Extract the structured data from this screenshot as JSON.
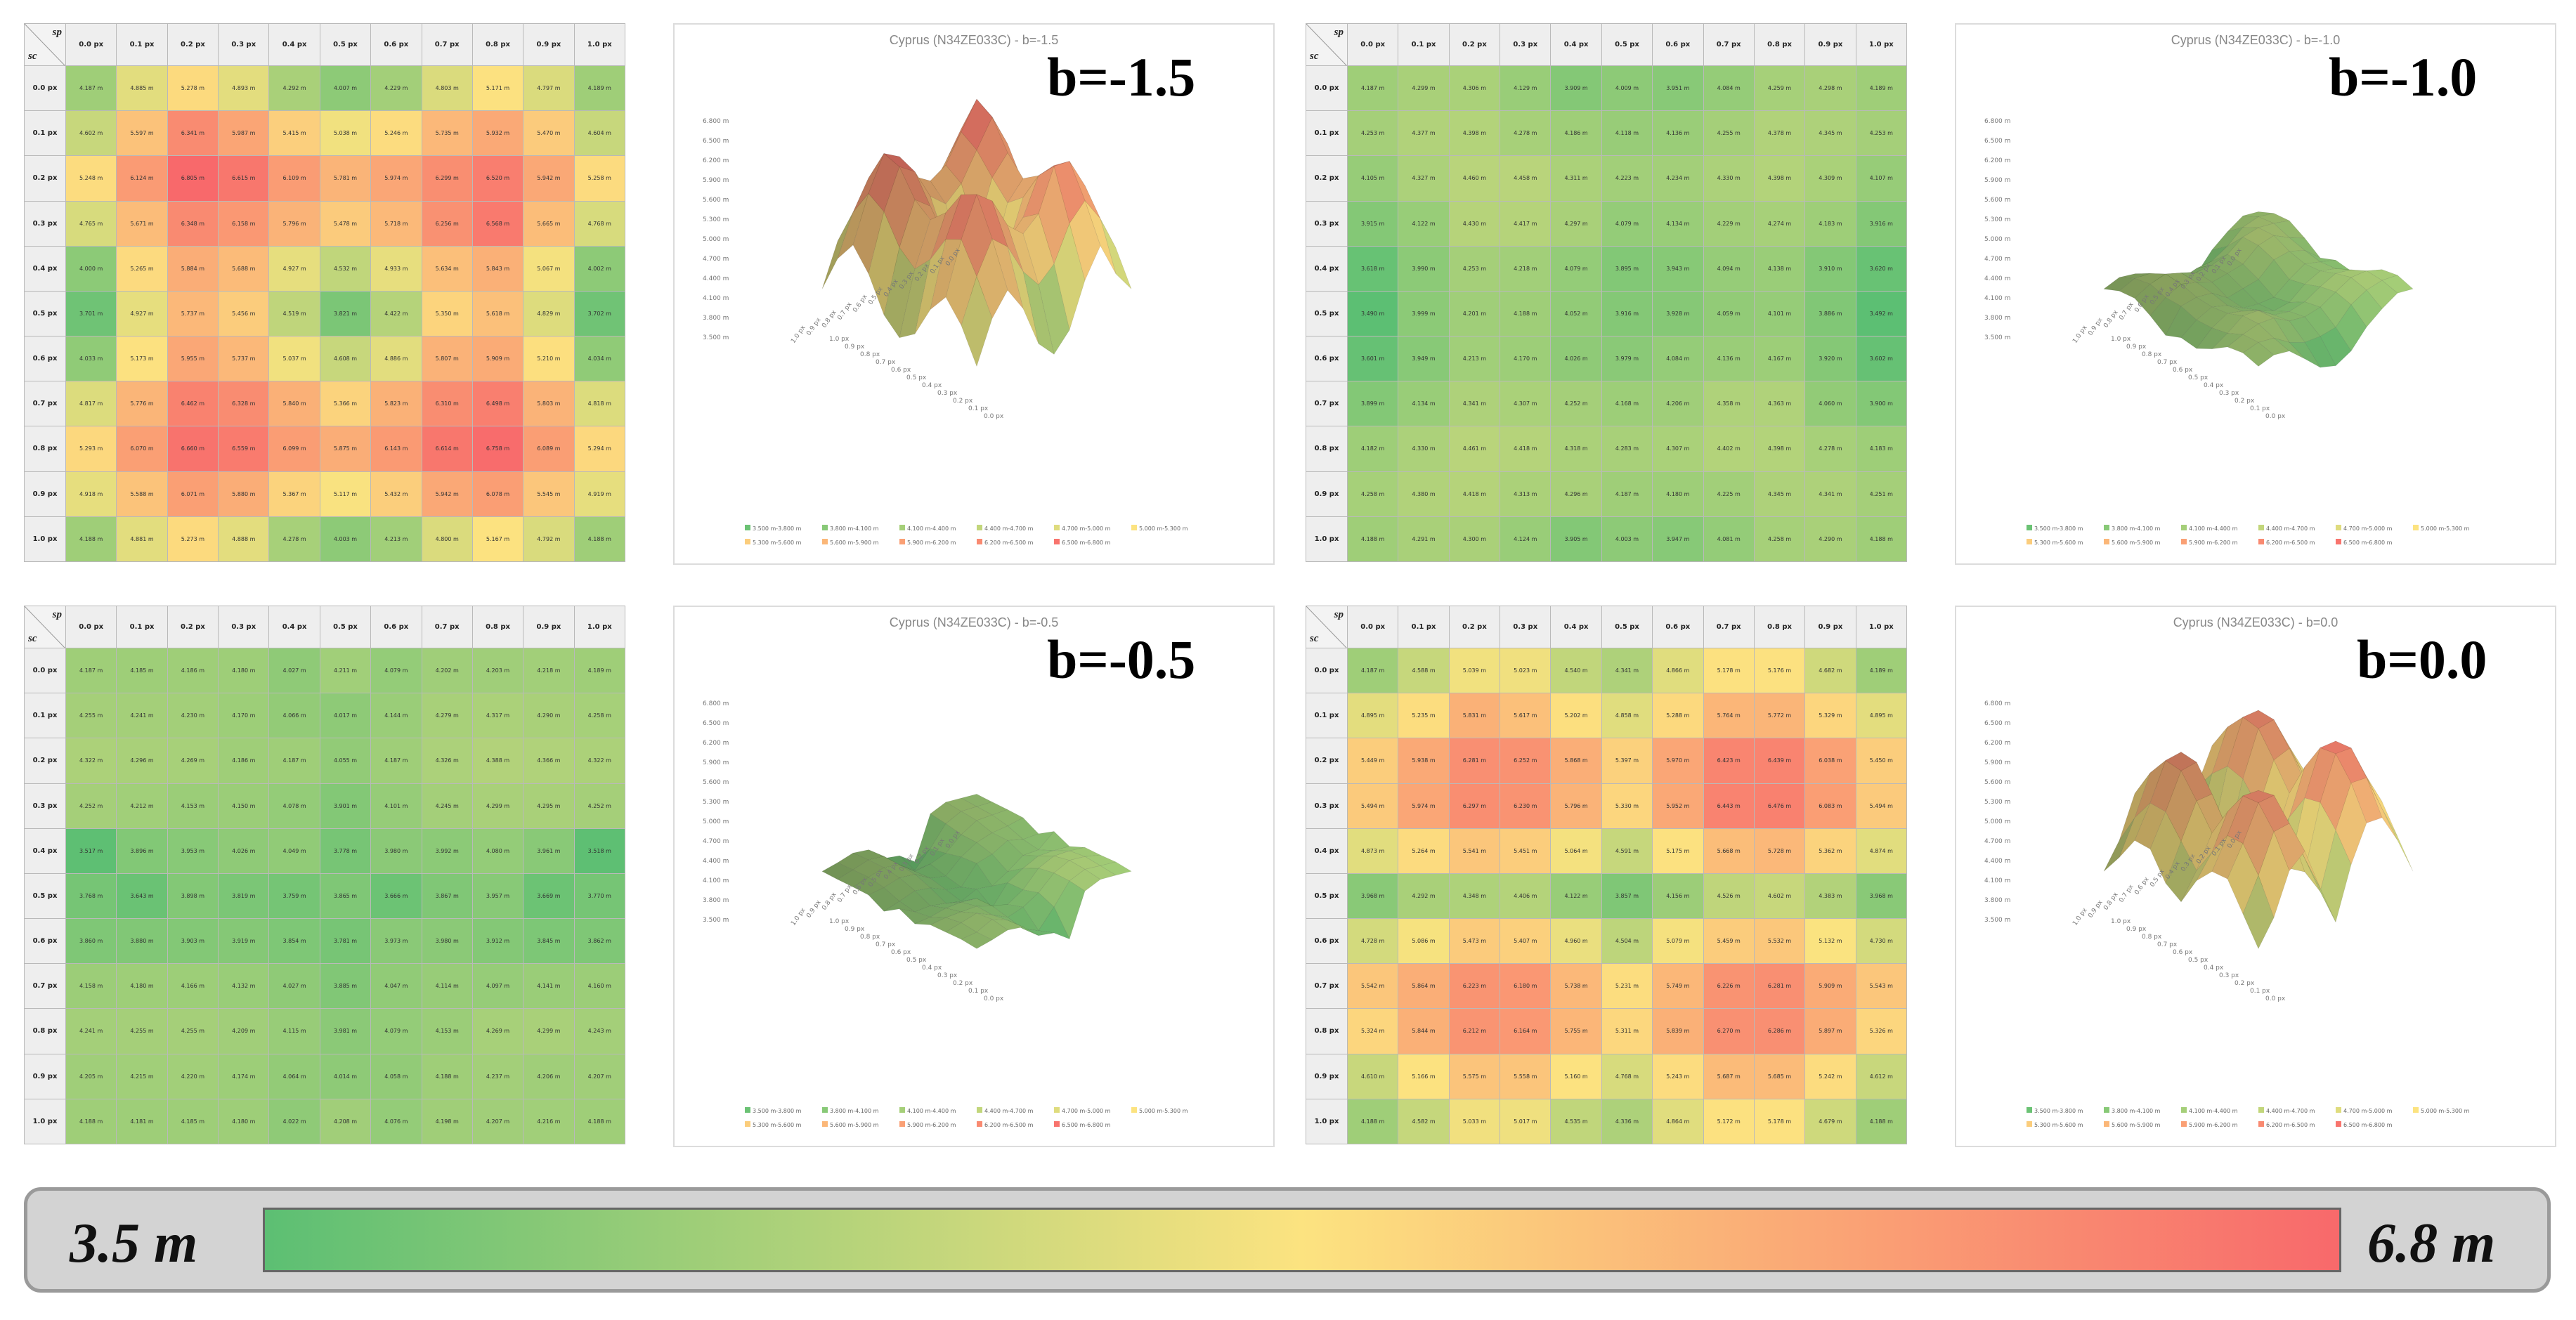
{
  "colorscale": {
    "min": 3.5,
    "max": 6.8,
    "colors": [
      "#5cbf73",
      "#fce380",
      "#f8696b"
    ]
  },
  "corner": {
    "top": "sp",
    "bottom": "sc"
  },
  "col_headers": [
    "0.0 px",
    "0.1 px",
    "0.2 px",
    "0.3 px",
    "0.4 px",
    "0.5 px",
    "0.6 px",
    "0.7 px",
    "0.8 px",
    "0.9 px",
    "1.0 px"
  ],
  "row_headers": [
    "0.0 px",
    "0.1 px",
    "0.2 px",
    "0.3 px",
    "0.4 px",
    "0.5 px",
    "0.6 px",
    "0.7 px",
    "0.8 px",
    "0.9 px",
    "1.0 px"
  ],
  "colorbar": {
    "min_label": "3.5 m",
    "max_label": "6.8 m"
  },
  "legend_items": [
    "3.500 m-3.800 m",
    "3.800 m-4.100 m",
    "4.100 m-4.400 m",
    "4.400 m-4.700 m",
    "4.700 m-5.000 m",
    "5.000 m-5.300 m",
    "5.300 m-5.600 m",
    "5.600 m-5.900 m",
    "5.900 m-6.200 m",
    "6.200 m-6.500 m",
    "6.500 m-6.800 m"
  ],
  "z_axis_ticks": [
    "6.800 m",
    "6.500 m",
    "6.200 m",
    "5.900 m",
    "5.600 m",
    "5.300 m",
    "5.000 m",
    "4.700 m",
    "4.400 m",
    "4.100 m",
    "3.800 m",
    "3.500 m"
  ],
  "chart_data": [
    {
      "type": "heatmap",
      "title": "b=-1.5",
      "plot_title": "Cyprus (N34ZE033C) - b=-1.5",
      "x_label": "sp",
      "y_label": "sc",
      "values": [
        [
          4.187,
          4.885,
          5.278,
          4.893,
          4.292,
          4.007,
          4.229,
          4.803,
          5.171,
          4.797,
          4.189
        ],
        [
          4.602,
          5.597,
          6.341,
          5.987,
          5.415,
          5.038,
          5.246,
          5.735,
          5.932,
          5.47,
          4.604
        ],
        [
          5.248,
          6.124,
          6.805,
          6.615,
          6.109,
          5.781,
          5.974,
          6.299,
          6.52,
          5.942,
          5.258
        ],
        [
          4.765,
          5.671,
          6.348,
          6.158,
          5.796,
          5.478,
          5.718,
          6.256,
          6.568,
          5.665,
          4.768
        ],
        [
          4.0,
          5.265,
          5.884,
          5.688,
          4.927,
          4.532,
          4.933,
          5.634,
          5.843,
          5.067,
          4.002
        ],
        [
          3.701,
          4.927,
          5.737,
          5.456,
          4.519,
          3.821,
          4.422,
          5.35,
          5.618,
          4.829,
          3.702
        ],
        [
          4.033,
          5.173,
          5.955,
          5.737,
          5.037,
          4.608,
          4.886,
          5.807,
          5.909,
          5.21,
          4.034
        ],
        [
          4.817,
          5.776,
          6.462,
          6.328,
          5.84,
          5.366,
          5.823,
          6.31,
          6.498,
          5.803,
          4.818
        ],
        [
          5.293,
          6.07,
          6.66,
          6.559,
          6.099,
          5.875,
          6.143,
          6.614,
          6.758,
          6.089,
          5.294
        ],
        [
          4.918,
          5.588,
          6.071,
          5.88,
          5.367,
          5.117,
          5.432,
          5.942,
          6.078,
          5.545,
          4.919
        ],
        [
          4.188,
          4.881,
          5.273,
          4.888,
          4.278,
          4.003,
          4.213,
          4.8,
          5.167,
          4.792,
          4.188
        ]
      ]
    },
    {
      "type": "heatmap",
      "title": "b=-1.0",
      "plot_title": "Cyprus (N34ZE033C) - b=-1.0",
      "x_label": "sp",
      "y_label": "sc",
      "values": [
        [
          4.187,
          4.299,
          4.306,
          4.129,
          3.909,
          4.009,
          3.951,
          4.084,
          4.259,
          4.298,
          4.189
        ],
        [
          4.253,
          4.377,
          4.398,
          4.278,
          4.186,
          4.118,
          4.136,
          4.255,
          4.378,
          4.345,
          4.253
        ],
        [
          4.105,
          4.327,
          4.46,
          4.458,
          4.311,
          4.223,
          4.234,
          4.33,
          4.398,
          4.309,
          4.107
        ],
        [
          3.915,
          4.122,
          4.43,
          4.417,
          4.297,
          4.079,
          4.134,
          4.229,
          4.274,
          4.183,
          3.916
        ],
        [
          3.618,
          3.99,
          4.253,
          4.218,
          4.079,
          3.895,
          3.943,
          4.094,
          4.138,
          3.91,
          3.62
        ],
        [
          3.49,
          3.999,
          4.201,
          4.188,
          4.052,
          3.916,
          3.928,
          4.059,
          4.101,
          3.886,
          3.492
        ],
        [
          3.601,
          3.949,
          4.213,
          4.17,
          4.026,
          3.979,
          4.084,
          4.136,
          4.167,
          3.92,
          3.602
        ],
        [
          3.899,
          4.134,
          4.341,
          4.307,
          4.252,
          4.168,
          4.206,
          4.358,
          4.363,
          4.06,
          3.9
        ],
        [
          4.182,
          4.33,
          4.461,
          4.418,
          4.318,
          4.283,
          4.307,
          4.402,
          4.398,
          4.278,
          4.183
        ],
        [
          4.258,
          4.38,
          4.418,
          4.313,
          4.296,
          4.187,
          4.18,
          4.225,
          4.345,
          4.341,
          4.251
        ],
        [
          4.188,
          4.291,
          4.3,
          4.124,
          3.905,
          4.003,
          3.947,
          4.081,
          4.258,
          4.29,
          4.188
        ]
      ]
    },
    {
      "type": "heatmap",
      "title": "b=-0.5",
      "plot_title": "Cyprus (N34ZE033C) - b=-0.5",
      "x_label": "sp",
      "y_label": "sc",
      "values": [
        [
          4.187,
          4.185,
          4.186,
          4.18,
          4.027,
          4.211,
          4.079,
          4.202,
          4.203,
          4.218,
          4.189
        ],
        [
          4.255,
          4.241,
          4.23,
          4.17,
          4.066,
          4.017,
          4.144,
          4.279,
          4.317,
          4.29,
          4.258
        ],
        [
          4.322,
          4.296,
          4.269,
          4.186,
          4.187,
          4.055,
          4.187,
          4.326,
          4.388,
          4.366,
          4.322
        ],
        [
          4.252,
          4.212,
          4.153,
          4.15,
          4.078,
          3.901,
          4.101,
          4.245,
          4.299,
          4.295,
          4.252
        ],
        [
          3.517,
          3.896,
          3.953,
          4.026,
          4.049,
          3.778,
          3.98,
          3.992,
          4.08,
          3.961,
          3.518
        ],
        [
          3.768,
          3.643,
          3.898,
          3.819,
          3.759,
          3.865,
          3.666,
          3.867,
          3.957,
          3.669,
          3.77
        ],
        [
          3.86,
          3.88,
          3.903,
          3.919,
          3.854,
          3.781,
          3.973,
          3.98,
          3.912,
          3.845,
          3.862
        ],
        [
          4.158,
          4.18,
          4.166,
          4.132,
          4.027,
          3.885,
          4.047,
          4.114,
          4.097,
          4.141,
          4.16
        ],
        [
          4.241,
          4.255,
          4.255,
          4.209,
          4.115,
          3.981,
          4.079,
          4.153,
          4.269,
          4.299,
          4.243
        ],
        [
          4.205,
          4.215,
          4.22,
          4.174,
          4.064,
          4.014,
          4.058,
          4.188,
          4.237,
          4.206,
          4.207
        ],
        [
          4.188,
          4.181,
          4.185,
          4.18,
          4.022,
          4.208,
          4.076,
          4.198,
          4.207,
          4.216,
          4.188
        ]
      ]
    },
    {
      "type": "heatmap",
      "title": "b=0.0",
      "plot_title": "Cyprus (N34ZE033C) - b=0.0",
      "x_label": "sp",
      "y_label": "sc",
      "values": [
        [
          4.187,
          4.588,
          5.039,
          5.023,
          4.54,
          4.341,
          4.866,
          5.178,
          5.176,
          4.682,
          4.189
        ],
        [
          4.895,
          5.235,
          5.831,
          5.617,
          5.202,
          4.858,
          5.288,
          5.764,
          5.772,
          5.329,
          4.895
        ],
        [
          5.449,
          5.938,
          6.281,
          6.252,
          5.868,
          5.397,
          5.97,
          6.423,
          6.439,
          6.038,
          5.45
        ],
        [
          5.494,
          5.974,
          6.297,
          6.23,
          5.796,
          5.33,
          5.952,
          6.443,
          6.476,
          6.083,
          5.494
        ],
        [
          4.873,
          5.264,
          5.541,
          5.451,
          5.064,
          4.591,
          5.175,
          5.668,
          5.728,
          5.362,
          4.874
        ],
        [
          3.968,
          4.292,
          4.348,
          4.406,
          4.122,
          3.857,
          4.156,
          4.526,
          4.602,
          4.383,
          3.968
        ],
        [
          4.728,
          5.086,
          5.473,
          5.407,
          4.96,
          4.504,
          5.079,
          5.459,
          5.532,
          5.132,
          4.73
        ],
        [
          5.542,
          5.864,
          6.223,
          6.18,
          5.738,
          5.231,
          5.749,
          6.226,
          6.281,
          5.909,
          5.543
        ],
        [
          5.324,
          5.844,
          6.212,
          6.164,
          5.755,
          5.311,
          5.839,
          6.27,
          6.286,
          5.897,
          5.326
        ],
        [
          4.61,
          5.166,
          5.575,
          5.558,
          5.16,
          4.768,
          5.243,
          5.687,
          5.685,
          5.242,
          4.612
        ],
        [
          4.188,
          4.582,
          5.033,
          5.017,
          4.535,
          4.336,
          4.864,
          5.172,
          5.178,
          4.679,
          4.188
        ]
      ]
    }
  ]
}
